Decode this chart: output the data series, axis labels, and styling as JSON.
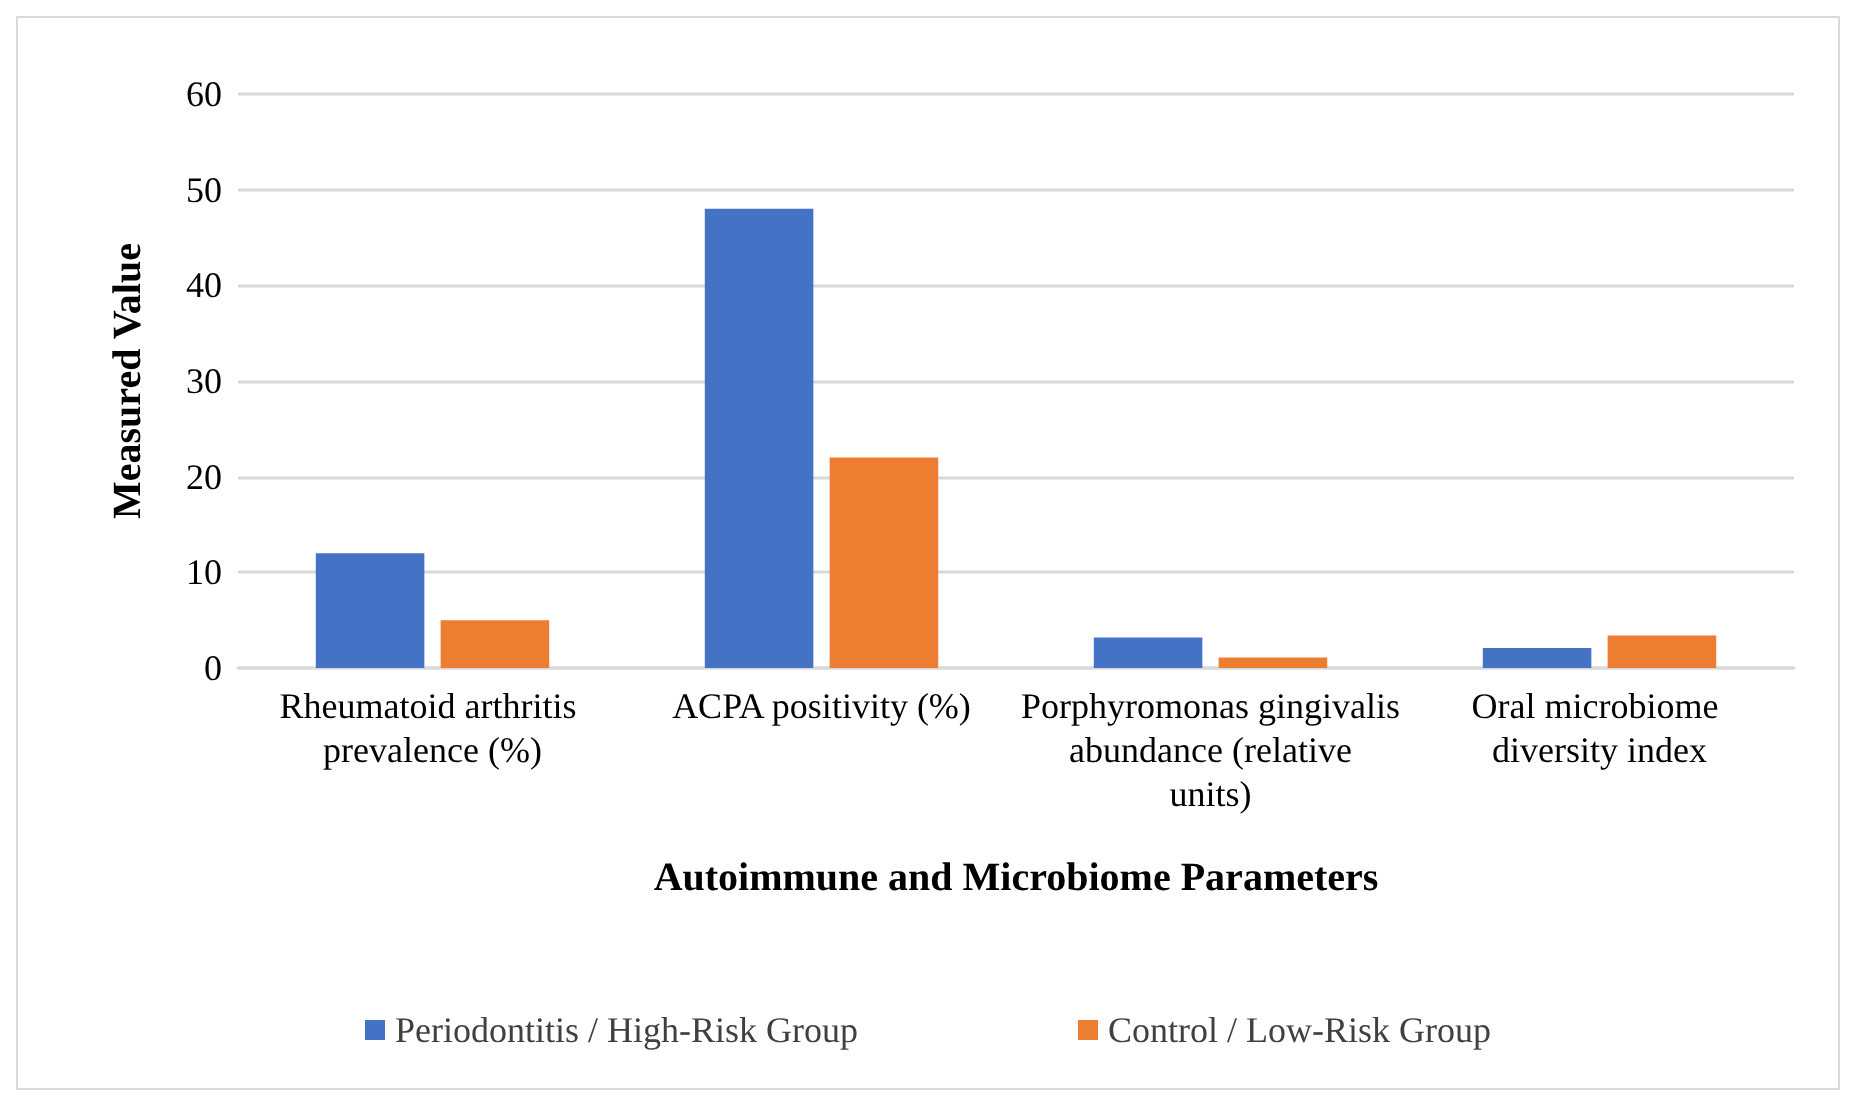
{
  "chart_data": {
    "type": "bar",
    "xlabel": "Autoimmune and Microbiome Parameters",
    "ylabel": "Measured Value",
    "categories": [
      "Rheumatoid arthritis prevalence (%)",
      "ACPA positivity (%)",
      "Porphyromonas gingivalis abundance (relative units)",
      "Oral microbiome diversity index"
    ],
    "series": [
      {
        "name": "Periodontitis / High-Risk Group",
        "color": "#4472c4",
        "values": [
          12,
          48,
          3.2,
          2.1
        ]
      },
      {
        "name": "Control / Low-Risk Group",
        "color": "#ed7d31",
        "values": [
          5,
          22,
          1.1,
          3.4
        ]
      }
    ],
    "ylim": [
      0,
      60
    ],
    "yticks": [
      0,
      10,
      20,
      30,
      40,
      50,
      60
    ],
    "grid": "y",
    "legend": "bottom"
  }
}
